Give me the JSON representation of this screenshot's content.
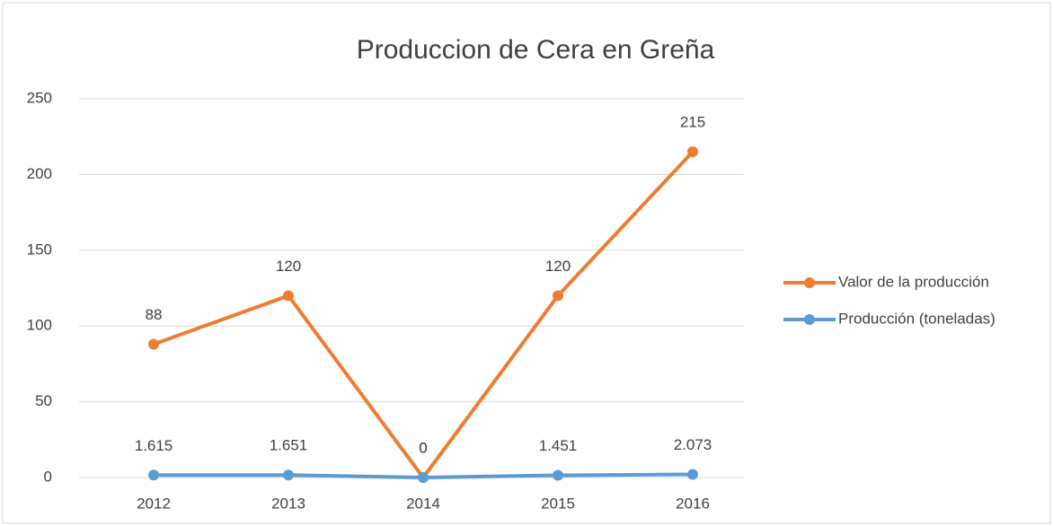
{
  "chart_data": {
    "type": "line",
    "title": "Produccion de Cera en Greña",
    "categories": [
      "2012",
      "2013",
      "2014",
      "2015",
      "2016"
    ],
    "series": [
      {
        "name": "Valor de la producción",
        "color": "#ed7d31",
        "values": [
          88,
          120,
          0,
          120,
          215
        ]
      },
      {
        "name": "Producción (toneladas)",
        "color": "#5b9bd5",
        "values": [
          1.615,
          1.651,
          0,
          1.451,
          2.073
        ]
      }
    ],
    "ylim": [
      0,
      250
    ],
    "yticks": [
      0,
      50,
      100,
      150,
      200,
      250
    ],
    "grid": true,
    "legend": "right"
  }
}
